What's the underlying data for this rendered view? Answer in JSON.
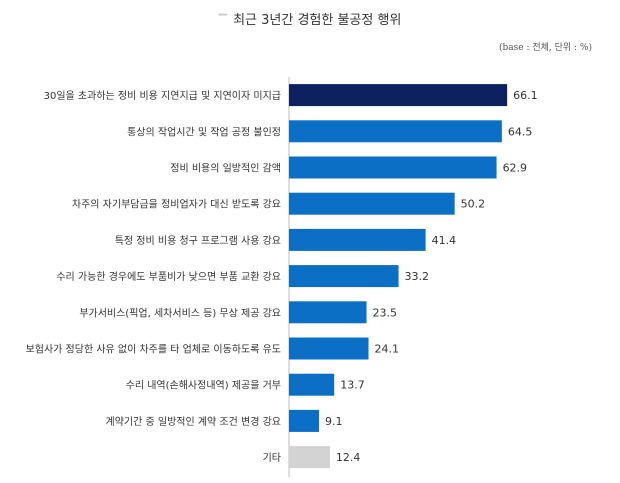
{
  "title": "최근 3년간 경험한 불공정 행위",
  "base_note": "(base : 전체, 단위 : %)",
  "colors": {
    "highlight": "#0d2160",
    "bar": "#0b6fc6",
    "other": "#d3d3d3",
    "axis": "#bdbdbd"
  },
  "chart_data": {
    "type": "bar",
    "orientation": "horizontal",
    "title": "최근 3년간 경험한 불공정 행위",
    "unit": "%",
    "categories": [
      "30일을 초과하는 정비 비용 지연지급 및 지연이자 미지급",
      "통상의 작업시간 및 작업 공정 불인정",
      "정비 비용의 일방적인 감액",
      "차주의 자기부담금을 정비업자가 대신 받도록 강요",
      "특정 정비 비용 청구 프로그램 사용 강요",
      "수리 가능한 경우에도 부품비가 낮으면 부품 교환 강요",
      "부가서비스(픽업, 세차서비스 등) 무상 제공 강요",
      "보험사가 정당한 사유 없이 차주를 타 업체로 이동하도록 유도",
      "수리 내역(손해사정내역) 제공을 거부",
      "계약기간 중 일방적인 계약 조건 변경 강요",
      "기타"
    ],
    "values": [
      66.1,
      64.5,
      62.9,
      50.2,
      41.4,
      33.2,
      23.5,
      24.1,
      13.7,
      9.1,
      12.4
    ],
    "value_labels": [
      "66.1",
      "64.5",
      "62.9",
      "50.2",
      "41.4",
      "33.2",
      "23.5",
      "24.1",
      "13.7",
      "9.1",
      "12.4"
    ],
    "bar_styles": [
      "highlight",
      "bar",
      "bar",
      "bar",
      "bar",
      "bar",
      "bar",
      "bar",
      "bar",
      "bar",
      "other"
    ],
    "xlim": [
      0,
      100
    ],
    "grid": false,
    "legend": "none"
  }
}
